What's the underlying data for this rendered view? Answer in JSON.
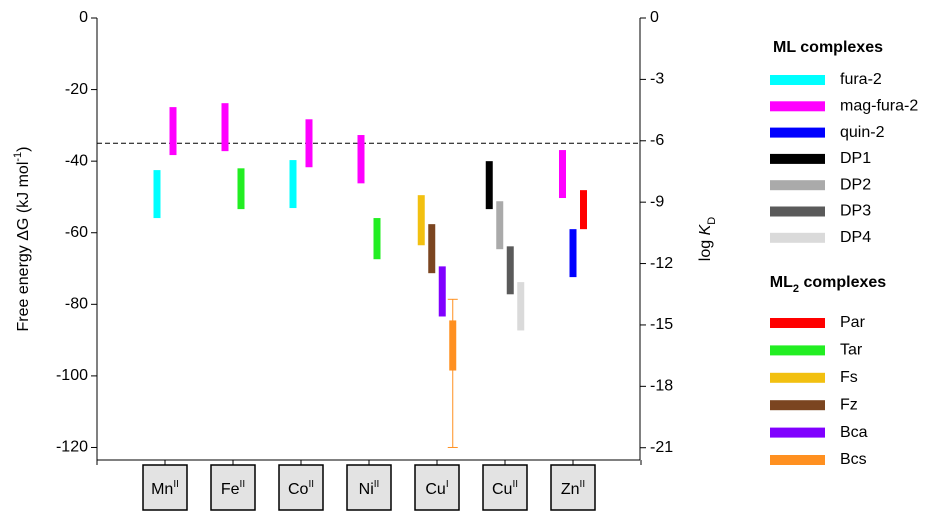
{
  "chart_data": {
    "type": "floating_bar",
    "y_label": [
      "Free energy  ΔG (kJ mol",
      "-1",
      ")"
    ],
    "y2_label": [
      "log ",
      "K",
      "D"
    ],
    "categories": [
      {
        "symbol": "Mn",
        "oxidation": "II"
      },
      {
        "symbol": "Fe",
        "oxidation": "II"
      },
      {
        "symbol": "Co",
        "oxidation": "II"
      },
      {
        "symbol": "Ni",
        "oxidation": "II"
      },
      {
        "symbol": "Cu",
        "oxidation": "I"
      },
      {
        "symbol": "Cu",
        "oxidation": "II"
      },
      {
        "symbol": "Zn",
        "oxidation": "II"
      }
    ],
    "ylim": [
      -123.5,
      0
    ],
    "yticks": [
      0,
      -20,
      -40,
      -60,
      -80,
      -100,
      -120
    ],
    "y2lim": [
      -21.6,
      0
    ],
    "y2ticks": [
      0,
      -3,
      -6,
      -9,
      -12,
      -15,
      -18,
      -21
    ],
    "reference_line": {
      "value": -35,
      "style": "dashed"
    },
    "legend_groups": [
      {
        "title": [
          "ML complexes"
        ]
      },
      {
        "title": [
          "ML",
          "2",
          " complexes"
        ]
      }
    ],
    "series": [
      {
        "name": "fura-2",
        "group": 0,
        "color": "#00ffff",
        "values": [
          [
            -42.5,
            -55.9
          ],
          null,
          [
            -39.7,
            -53.1
          ],
          null,
          null,
          null,
          null
        ]
      },
      {
        "name": "mag-fura-2",
        "group": 0,
        "color": "#ff00ff",
        "values": [
          [
            -24.9,
            -38.3
          ],
          [
            -23.8,
            -37.2
          ],
          [
            -28.3,
            -41.7
          ],
          [
            -32.7,
            -46.2
          ],
          null,
          null,
          [
            -36.9,
            -50.3
          ]
        ]
      },
      {
        "name": "quin-2",
        "group": 0,
        "color": "#0000ff",
        "values": [
          null,
          null,
          null,
          null,
          null,
          null,
          [
            -59,
            -72.4
          ]
        ]
      },
      {
        "name": "DP1",
        "group": 0,
        "color": "#000000",
        "values": [
          null,
          null,
          null,
          null,
          null,
          [
            -40,
            -53.4
          ],
          null
        ]
      },
      {
        "name": "DP2",
        "group": 0,
        "color": "#aaaaaa",
        "values": [
          null,
          null,
          null,
          null,
          null,
          [
            -51.2,
            -64.6
          ],
          null
        ]
      },
      {
        "name": "DP3",
        "group": 0,
        "color": "#5a5a5a",
        "values": [
          null,
          null,
          null,
          null,
          null,
          [
            -63.8,
            -77.2
          ],
          null
        ]
      },
      {
        "name": "DP4",
        "group": 0,
        "color": "#dadada",
        "values": [
          null,
          null,
          null,
          null,
          null,
          [
            -73.8,
            -87.3
          ],
          null
        ]
      },
      {
        "name": "Par",
        "group": 1,
        "color": "#ff0000",
        "values": [
          null,
          null,
          null,
          null,
          null,
          null,
          [
            -48.1,
            -59
          ]
        ]
      },
      {
        "name": "Tar",
        "group": 1,
        "color": "#22ee22",
        "values": [
          null,
          [
            -42,
            -53.4
          ],
          null,
          [
            -55.9,
            -67.4
          ],
          null,
          null,
          null
        ]
      },
      {
        "name": "Fs",
        "group": 1,
        "color": "#f2c010",
        "values": [
          null,
          null,
          null,
          null,
          [
            -49.5,
            -63.5
          ],
          null,
          null
        ]
      },
      {
        "name": "Fz",
        "group": 1,
        "color": "#7b4520",
        "values": [
          null,
          null,
          null,
          null,
          [
            -57.6,
            -71.3
          ],
          null,
          null
        ]
      },
      {
        "name": "Bca",
        "group": 1,
        "color": "#8000ff",
        "values": [
          null,
          null,
          null,
          null,
          [
            -69.4,
            -83.4
          ],
          null,
          null
        ]
      },
      {
        "name": "Bcs",
        "group": 1,
        "color": "#ff9020",
        "values": [
          null,
          null,
          null,
          null,
          [
            -84.5,
            -98.5
          ],
          null,
          null
        ],
        "error_bars": [
          null,
          null,
          null,
          null,
          [
            -78.6,
            -120
          ],
          null,
          null
        ]
      }
    ]
  }
}
